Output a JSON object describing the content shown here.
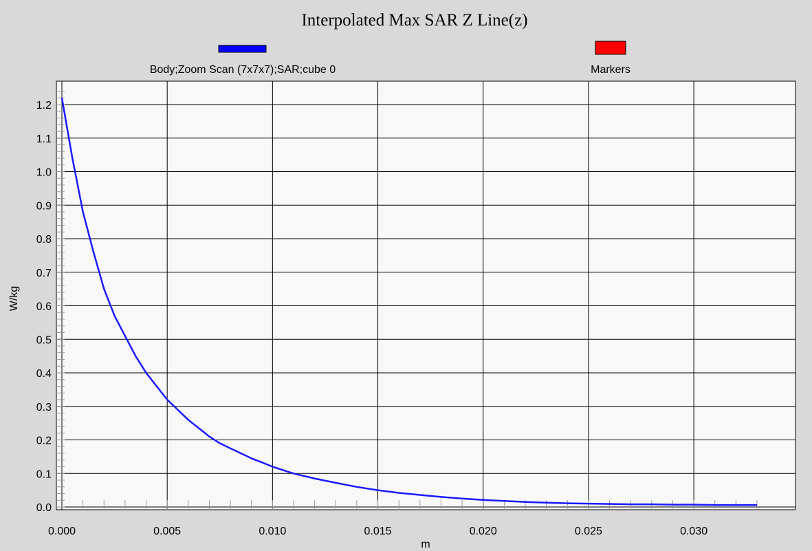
{
  "chart_data": {
    "type": "line",
    "title": "Interpolated Max SAR Z Line(z)",
    "xlabel": "m",
    "ylabel": "W/kg",
    "xlim": [
      0.0,
      0.0345
    ],
    "ylim": [
      0.0,
      1.25
    ],
    "grid": true,
    "legend_position": "top",
    "x_ticks": [
      "0.000",
      "0.005",
      "0.010",
      "0.015",
      "0.020",
      "0.025",
      "0.030"
    ],
    "x_tick_values": [
      0.0,
      0.005,
      0.01,
      0.015,
      0.02,
      0.025,
      0.03
    ],
    "y_ticks": [
      "0.0",
      "0.1",
      "0.2",
      "0.3",
      "0.4",
      "0.5",
      "0.6",
      "0.7",
      "0.8",
      "0.9",
      "1.0",
      "1.1",
      "1.2"
    ],
    "y_tick_values": [
      0.0,
      0.1,
      0.2,
      0.3,
      0.4,
      0.5,
      0.6,
      0.7,
      0.8,
      0.9,
      1.0,
      1.1,
      1.2
    ],
    "legend": [
      {
        "name": "Body;Zoom Scan (7x7x7);SAR;cube 0",
        "color": "#0000ff"
      },
      {
        "name": "Markers",
        "color": "#ff0000"
      }
    ],
    "series": [
      {
        "name": "Body;Zoom Scan (7x7x7);SAR;cube 0",
        "color": "#1a1aff",
        "x": [
          0.0,
          0.0005,
          0.001,
          0.0015,
          0.002,
          0.0025,
          0.003,
          0.0035,
          0.004,
          0.0045,
          0.005,
          0.0055,
          0.006,
          0.0065,
          0.007,
          0.0075,
          0.008,
          0.0085,
          0.009,
          0.0095,
          0.01,
          0.0105,
          0.011,
          0.012,
          0.013,
          0.014,
          0.015,
          0.016,
          0.017,
          0.018,
          0.019,
          0.02,
          0.021,
          0.022,
          0.023,
          0.024,
          0.025,
          0.026,
          0.027,
          0.028,
          0.029,
          0.03,
          0.031,
          0.032,
          0.033
        ],
        "y": [
          1.22,
          1.04,
          0.88,
          0.76,
          0.65,
          0.57,
          0.51,
          0.45,
          0.4,
          0.36,
          0.32,
          0.29,
          0.26,
          0.235,
          0.21,
          0.19,
          0.175,
          0.16,
          0.145,
          0.133,
          0.12,
          0.11,
          0.1,
          0.085,
          0.072,
          0.06,
          0.05,
          0.042,
          0.036,
          0.03,
          0.025,
          0.021,
          0.018,
          0.015,
          0.013,
          0.011,
          0.01,
          0.009,
          0.008,
          0.008,
          0.007,
          0.007,
          0.006,
          0.006,
          0.006
        ]
      }
    ]
  },
  "colors": {
    "background": "#d9d9d9",
    "plot_background": "#f8f8f8",
    "grid": "#000000"
  }
}
